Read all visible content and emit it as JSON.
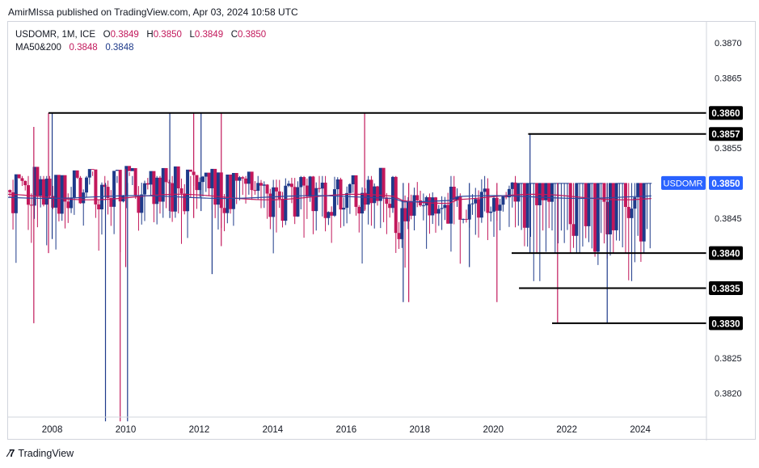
{
  "header": {
    "published_line": "AmirMIssa published on TradingView.com, Apr 03, 2024 10:58 UTC"
  },
  "legend": {
    "symbol_line": "USDOMR, 1M, ICE",
    "open_label": "O",
    "open_value": "0.3849",
    "high_label": "H",
    "high_value": "0.3850",
    "low_label": "L",
    "low_value": "0.3849",
    "close_label": "C",
    "close_value": "0.3850",
    "ma_label": "MA50&200",
    "ma50_value": "0.3848",
    "ma200_value": "0.3848"
  },
  "footer": {
    "brand": "TradingView"
  },
  "colors": {
    "up": "#1e3a8a",
    "down": "#c2185b",
    "ma50": "#c2185b",
    "ma200": "#2e4a9e",
    "level": "#000000",
    "badge": "#2962ff"
  },
  "chart_data": {
    "type": "candlestick",
    "title": "USDOMR, 1M, ICE",
    "interval": "1M",
    "x_range": [
      2006.8,
      2025.8
    ],
    "y_range": [
      0.38166,
      0.3873
    ],
    "x_ticks": [
      "2008",
      "2010",
      "2012",
      "2014",
      "2016",
      "2018",
      "2020",
      "2022",
      "2024"
    ],
    "y_ticks": [
      "0.3870",
      "0.3865",
      "0.3855",
      "0.3845",
      "0.3825",
      "0.3820"
    ],
    "last_price": {
      "label": "USDOMR",
      "value": "0.3850"
    },
    "levels": [
      {
        "value": 0.386,
        "label": "0.3860",
        "from_year": 2007.9
      },
      {
        "value": 0.3857,
        "label": "0.3857",
        "from_year": 2020.95
      },
      {
        "value": 0.384,
        "label": "0.3840",
        "from_year": 2020.5
      },
      {
        "value": 0.3835,
        "label": "0.3835",
        "from_year": 2020.7
      },
      {
        "value": 0.383,
        "label": "0.3830",
        "from_year": 2021.6
      }
    ],
    "ma50": {
      "name": "MA50",
      "value": 0.3848
    },
    "ma200": {
      "name": "MA200",
      "value": 0.3848
    },
    "notable_wicks": [
      {
        "year": 2007.9,
        "high": 0.386,
        "low": 0.384
      },
      {
        "year": 2008.0,
        "high": 0.386,
        "low": 0.3842
      },
      {
        "year": 2007.5,
        "high": 0.3858,
        "low": 0.383
      },
      {
        "year": 2009.45,
        "high": 0.385,
        "low": 0.3816
      },
      {
        "year": 2009.85,
        "high": 0.385,
        "low": 0.3816
      },
      {
        "year": 2010.05,
        "high": 0.385,
        "low": 0.3816
      },
      {
        "year": 2010.0,
        "high": 0.3852,
        "low": 0.3838
      },
      {
        "year": 2011.2,
        "high": 0.386,
        "low": 0.3845
      },
      {
        "year": 2011.85,
        "high": 0.386,
        "low": 0.3845
      },
      {
        "year": 2012.05,
        "high": 0.386,
        "low": 0.3846
      },
      {
        "year": 2012.6,
        "high": 0.386,
        "low": 0.3841
      },
      {
        "year": 2012.35,
        "high": 0.385,
        "low": 0.3837
      },
      {
        "year": 2016.5,
        "high": 0.386,
        "low": 0.3846
      },
      {
        "year": 2017.55,
        "high": 0.385,
        "low": 0.3833
      },
      {
        "year": 2017.7,
        "high": 0.385,
        "low": 0.3833
      },
      {
        "year": 2019.35,
        "high": 0.385,
        "low": 0.3838
      },
      {
        "year": 2020.1,
        "high": 0.385,
        "low": 0.3833
      },
      {
        "year": 2021.0,
        "high": 0.3857,
        "low": 0.384
      },
      {
        "year": 2021.75,
        "high": 0.385,
        "low": 0.383
      },
      {
        "year": 2023.1,
        "high": 0.385,
        "low": 0.383
      }
    ]
  }
}
